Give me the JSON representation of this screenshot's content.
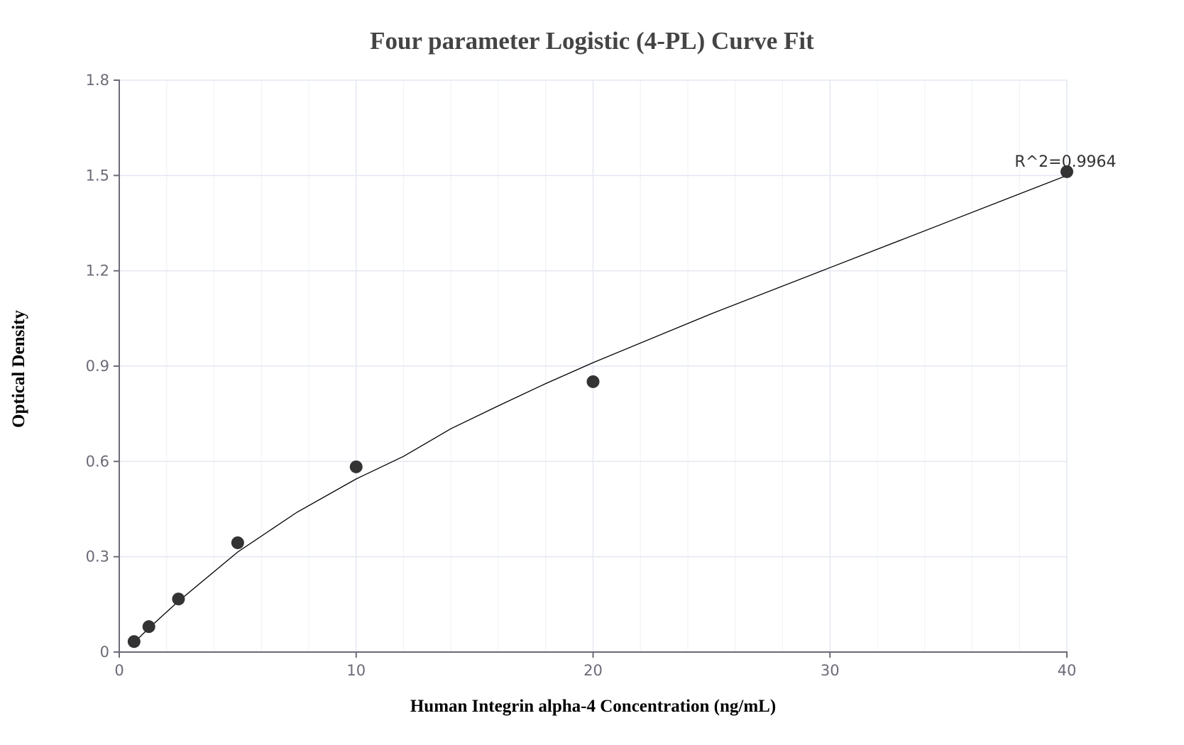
{
  "chart": {
    "title": "Four parameter Logistic (4-PL) Curve Fit",
    "xlabel": "Human Integrin alpha-4 Concentration (ng/mL)",
    "ylabel": "Optical Density",
    "annotation": "R^2=0.9964"
  },
  "colors": {
    "point": "#333333",
    "curve": "#000000",
    "grid_major": "#e4e8f2",
    "grid_minor": "#f1f3f8",
    "axis": "#6b6b78",
    "tick_text": "#6b6b78",
    "title": "#444444"
  },
  "chart_data": {
    "type": "scatter",
    "title": "Four parameter Logistic (4-PL) Curve Fit",
    "xlabel": "Human Integrin alpha-4 Concentration (ng/mL)",
    "ylabel": "Optical Density",
    "xlim": [
      0,
      40
    ],
    "ylim": [
      0,
      1.8
    ],
    "x_ticks": [
      0,
      10,
      20,
      30,
      40
    ],
    "y_ticks": [
      0,
      0.3,
      0.6,
      0.9,
      1.2,
      1.5,
      1.8
    ],
    "y_tick_labels": [
      "0",
      "0.3",
      "0.6",
      "0.9",
      "1.2",
      "1.5",
      "1.8"
    ],
    "x_minor_step": 2,
    "grid": true,
    "legend": null,
    "annotations": [
      {
        "text": "R^2=0.9964",
        "x": 40,
        "y": 1.51
      }
    ],
    "series": [
      {
        "name": "Standards",
        "type": "scatter",
        "x": [
          0.625,
          1.25,
          2.5,
          5,
          10,
          20,
          40
        ],
        "y": [
          0.033,
          0.08,
          0.167,
          0.344,
          0.583,
          0.851,
          1.512
        ]
      },
      {
        "name": "4-PL fit",
        "type": "line",
        "x": [
          0.625,
          1.25,
          2.5,
          5,
          7.5,
          10,
          12,
          14,
          16,
          18,
          20,
          25,
          30,
          35,
          40
        ],
        "y": [
          0.03,
          0.075,
          0.16,
          0.315,
          0.44,
          0.545,
          0.616,
          0.703,
          0.775,
          0.845,
          0.911,
          1.065,
          1.21,
          1.355,
          1.5
        ]
      }
    ],
    "r_squared": 0.9964
  }
}
